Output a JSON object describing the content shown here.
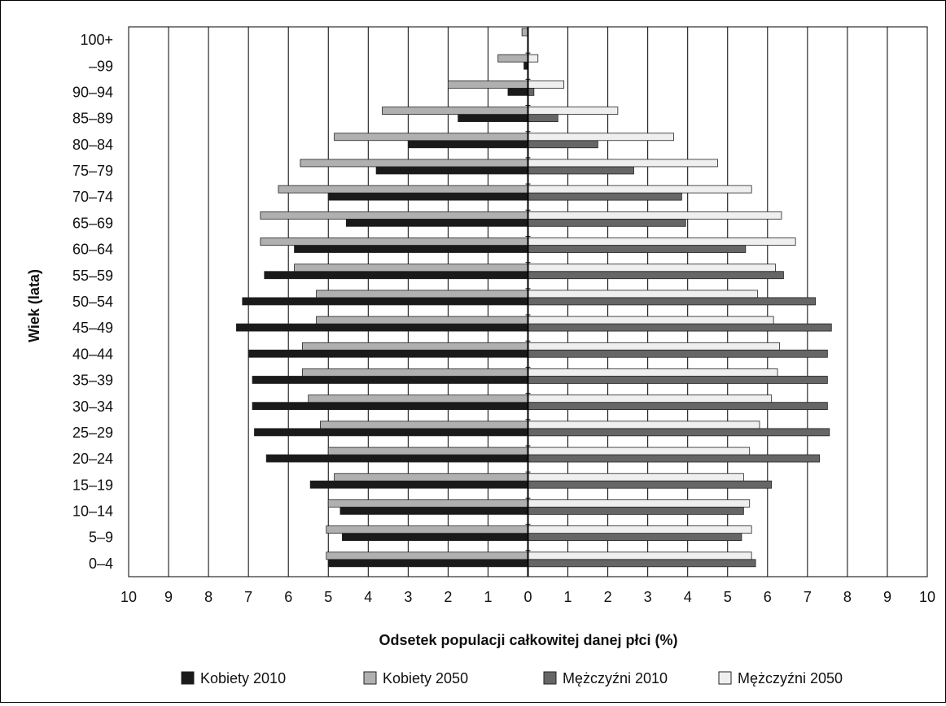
{
  "chart_data": {
    "type": "bar",
    "orientation": "horizontal",
    "layout": "population-pyramid",
    "xlabel": "Odsetek populacji całkowitej danej płci (%)",
    "ylabel": "Wiek (lata)",
    "xlim": [
      -10,
      10
    ],
    "xticks": [
      "10",
      "9",
      "8",
      "7",
      "6",
      "5",
      "4",
      "3",
      "2",
      "1",
      "0",
      "1",
      "2",
      "3",
      "4",
      "5",
      "6",
      "7",
      "8",
      "9",
      "10"
    ],
    "grid": "vertical",
    "legend_position": "bottom",
    "categories": [
      "0–4",
      "5–9",
      "10–14",
      "15–19",
      "20–24",
      "25–29",
      "30–34",
      "35–39",
      "40–44",
      "45–49",
      "50–54",
      "55–59",
      "60–64",
      "65–69",
      "70–74",
      "75–79",
      "80–84",
      "85–89",
      "90–94",
      "–99",
      "100+"
    ],
    "series": [
      {
        "name": "Kobiety 2010",
        "side": "left",
        "color": "#1a1a1a",
        "values": [
          5.0,
          4.65,
          4.7,
          5.45,
          6.55,
          6.85,
          6.9,
          6.9,
          7.0,
          7.3,
          7.15,
          6.6,
          5.85,
          4.55,
          5.0,
          3.8,
          3.0,
          1.75,
          0.5,
          0.1,
          0.0
        ]
      },
      {
        "name": "Kobiety 2050",
        "side": "left",
        "color": "#b0b0b0",
        "values": [
          5.05,
          5.05,
          5.0,
          4.85,
          5.0,
          5.2,
          5.5,
          5.65,
          5.65,
          5.3,
          5.3,
          5.85,
          6.7,
          6.7,
          6.25,
          5.7,
          4.85,
          3.65,
          2.0,
          0.75,
          0.15
        ]
      },
      {
        "name": "Mężczyźni 2010",
        "side": "right",
        "color": "#666666",
        "values": [
          5.7,
          5.35,
          5.4,
          6.1,
          7.3,
          7.55,
          7.5,
          7.5,
          7.5,
          7.6,
          7.2,
          6.4,
          5.45,
          3.95,
          3.85,
          2.65,
          1.75,
          0.75,
          0.15,
          0.0,
          0.0
        ]
      },
      {
        "name": "Mężczyźni 2050",
        "side": "right",
        "color": "#efefef",
        "values": [
          5.6,
          5.6,
          5.55,
          5.4,
          5.55,
          5.8,
          6.1,
          6.25,
          6.3,
          6.15,
          5.75,
          6.2,
          6.7,
          6.35,
          5.6,
          4.75,
          3.65,
          2.25,
          0.9,
          0.25,
          0.0
        ]
      }
    ]
  }
}
